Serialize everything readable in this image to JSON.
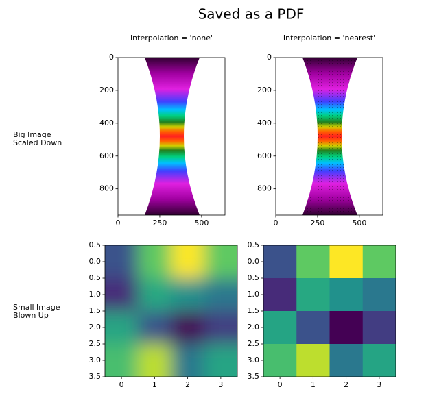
{
  "title": "Saved as a PDF",
  "row_labels": [
    [
      "Big Image",
      "Scaled Down"
    ],
    [
      "Small Image",
      "Blown Up"
    ]
  ],
  "chart_data": [
    {
      "type": "image",
      "title": "Interpolation = 'none'",
      "xlim": [
        0,
        640
      ],
      "ylim": [
        960,
        0
      ],
      "xticks": [
        0,
        250,
        500
      ],
      "yticks": [
        0,
        200,
        400,
        600,
        800
      ]
    },
    {
      "type": "image",
      "title": "Interpolation = 'nearest'",
      "xlim": [
        0,
        640
      ],
      "ylim": [
        960,
        0
      ],
      "xticks": [
        0,
        250,
        500
      ],
      "yticks": [
        0,
        200,
        400,
        600,
        800
      ]
    },
    {
      "type": "heatmap",
      "interpolation": "bicubic",
      "cmap": "viridis",
      "xlim": [
        -0.5,
        3.5
      ],
      "ylim": [
        3.5,
        -0.5
      ],
      "xticks": [
        0,
        1,
        2,
        3
      ],
      "yticks": [
        {
          "value": -0.5,
          "label": "−0.5"
        },
        {
          "value": 0,
          "label": "0.0"
        },
        0.5,
        {
          "value": 1,
          "label": "1.0"
        },
        1.5,
        {
          "value": 2,
          "label": "2.0"
        },
        2.5,
        {
          "value": 3,
          "label": "3.0"
        },
        3.5
      ],
      "values": [
        [
          0.25,
          0.75,
          1,
          0.75
        ],
        [
          0.12,
          0.6,
          0.5,
          0.4
        ],
        [
          0.58,
          0.25,
          0,
          0.18
        ],
        [
          0.7,
          0.9,
          0.4,
          0.58
        ]
      ]
    },
    {
      "type": "heatmap",
      "interpolation": "nearest",
      "cmap": "viridis",
      "xlim": [
        -0.5,
        3.5
      ],
      "ylim": [
        3.5,
        -0.5
      ],
      "xticks": [
        0,
        1,
        2,
        3
      ],
      "yticks": [
        {
          "value": -0.5,
          "label": "−0.5"
        },
        {
          "value": 0,
          "label": "0.0"
        },
        0.5,
        {
          "value": 1,
          "label": "1.0"
        },
        1.5,
        {
          "value": 2,
          "label": "2.0"
        },
        2.5,
        {
          "value": 3,
          "label": "3.0"
        },
        3.5
      ],
      "values": [
        [
          0.25,
          0.75,
          1,
          0.75
        ],
        [
          0.12,
          0.6,
          0.5,
          0.4
        ],
        [
          0.58,
          0.25,
          0,
          0.18
        ],
        [
          0.7,
          0.9,
          0.4,
          0.58
        ]
      ]
    }
  ]
}
